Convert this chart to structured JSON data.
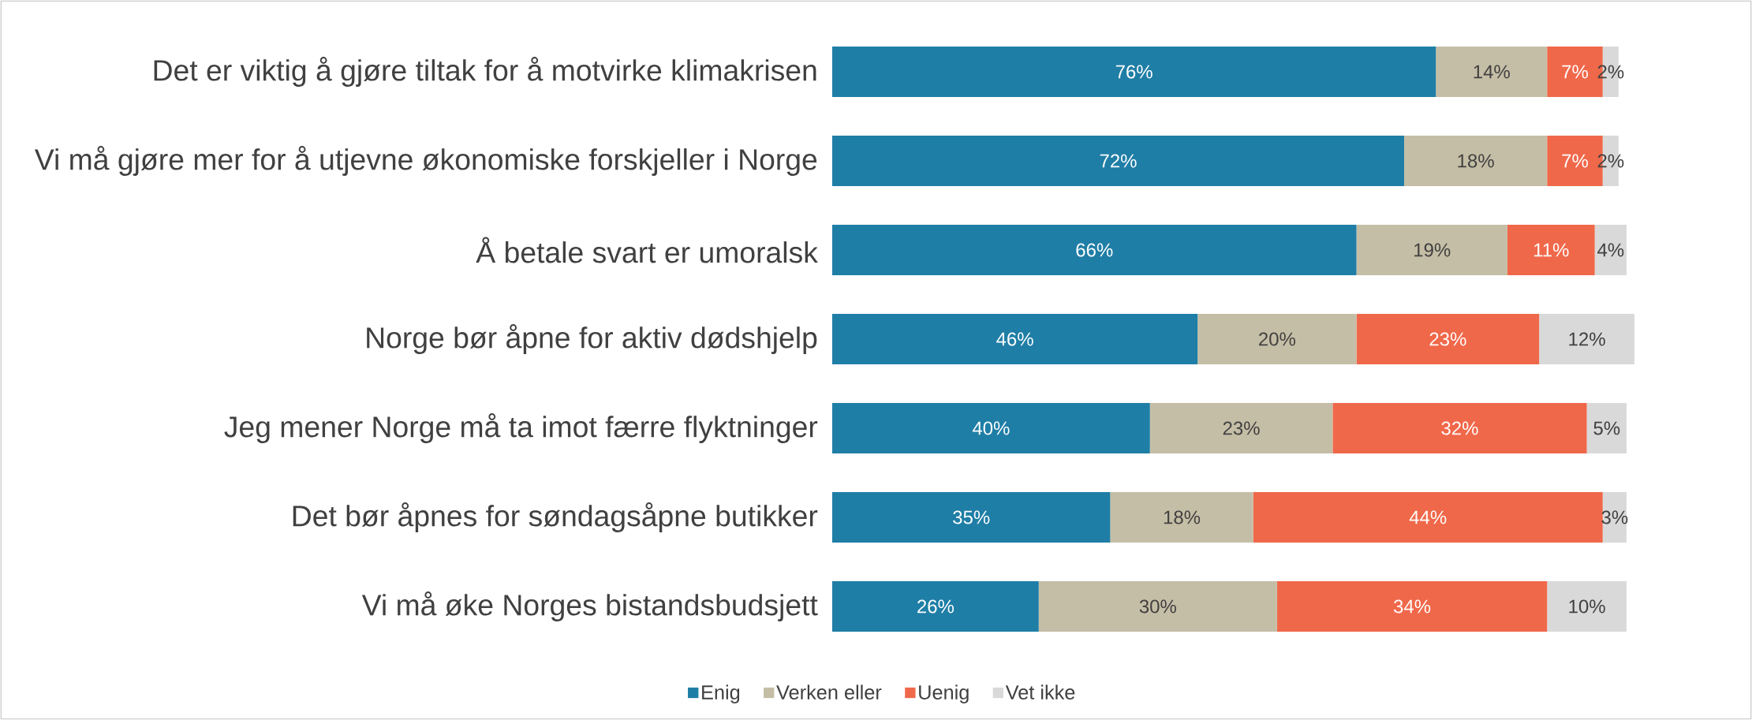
{
  "chart_data": {
    "type": "bar",
    "orientation": "horizontal",
    "stacked": true,
    "legend": "bottom",
    "categories": [
      "Det er viktig å gjøre tiltak for å motvirke klimakrisen",
      "Vi må gjøre mer for å utjevne økonomiske forskjeller i Norge",
      "Å betale svart er umoralsk",
      "Norge bør åpne for aktiv dødshjelp",
      "Jeg mener Norge må ta imot færre flyktninger",
      "Det bør åpnes for søndagsåpne butikker",
      "Vi må øke Norges bistandsbudsjett"
    ],
    "series": [
      {
        "name": "Enig",
        "color": "#1f7ea6",
        "values": [
          76,
          72,
          66,
          46,
          40,
          35,
          26
        ],
        "value_labels": [
          "76%",
          "72%",
          "66%",
          "46%",
          "40%",
          "35%",
          "26%"
        ]
      },
      {
        "name": "Verken eller",
        "color": "#c5bea6",
        "values": [
          14,
          18,
          19,
          20,
          23,
          18,
          30
        ],
        "value_labels": [
          "14%",
          "18%",
          "19%",
          "20%",
          "23%",
          "18%",
          "30%"
        ]
      },
      {
        "name": "Uenig",
        "color": "#f0684a",
        "values": [
          7,
          7,
          11,
          23,
          32,
          44,
          34
        ],
        "value_labels": [
          "7%",
          "7%",
          "11%",
          "23%",
          "32%",
          "44%",
          "34%"
        ]
      },
      {
        "name": "Vet ikke",
        "color": "#d9d9d9",
        "values": [
          2,
          2,
          4,
          12,
          5,
          3,
          10
        ],
        "value_labels": [
          "2%",
          "2%",
          "4%",
          "12%",
          "5%",
          "3%",
          "10%"
        ]
      }
    ]
  }
}
